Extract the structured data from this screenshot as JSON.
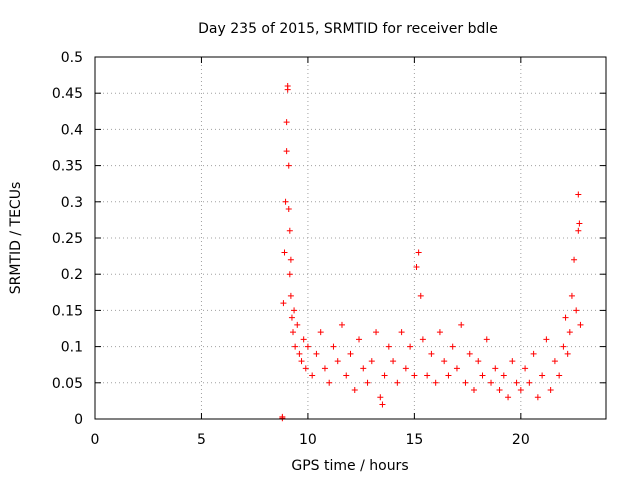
{
  "chart_data": {
    "type": "scatter",
    "title": "Day 235 of 2015, SRMTID for receiver bdle",
    "xlabel": "GPS time / hours",
    "ylabel": "SRMTID / TECUs",
    "xlim": [
      0,
      24
    ],
    "ylim": [
      0,
      0.5
    ],
    "xticks": [
      0,
      5,
      10,
      15,
      20
    ],
    "xtick_labels": [
      "0",
      "5",
      "10",
      "15",
      "20"
    ],
    "yticks": [
      0,
      0.05,
      0.1,
      0.15,
      0.2,
      0.25,
      0.3,
      0.35,
      0.4,
      0.45,
      0.5
    ],
    "ytick_labels": [
      "0",
      "0.05",
      "0.1",
      "0.15",
      "0.2",
      "0.25",
      "0.3",
      "0.35",
      "0.4",
      "0.45",
      "0.5"
    ],
    "grid": true,
    "marker": "+",
    "color": "#ff0000",
    "series": [
      {
        "name": "SRMTID",
        "x": [
          8.8,
          8.8,
          8.85,
          8.9,
          8.95,
          9.0,
          9.0,
          9.05,
          9.05,
          9.1,
          9.1,
          9.15,
          9.15,
          9.2,
          9.2,
          9.25,
          9.3,
          9.35,
          9.4,
          9.5,
          9.6,
          9.7,
          9.8,
          9.9,
          10.0,
          10.2,
          10.4,
          10.6,
          10.8,
          11.0,
          11.2,
          11.4,
          11.6,
          11.8,
          12.0,
          12.2,
          12.4,
          12.6,
          12.8,
          13.0,
          13.2,
          13.4,
          13.5,
          13.6,
          13.8,
          14.0,
          14.2,
          14.4,
          14.6,
          14.8,
          15.0,
          15.1,
          15.2,
          15.3,
          15.4,
          15.6,
          15.8,
          16.0,
          16.2,
          16.4,
          16.6,
          16.8,
          17.0,
          17.2,
          17.4,
          17.6,
          17.8,
          18.0,
          18.2,
          18.4,
          18.6,
          18.8,
          19.0,
          19.2,
          19.4,
          19.6,
          19.8,
          20.0,
          20.2,
          20.4,
          20.6,
          20.8,
          21.0,
          21.2,
          21.4,
          21.6,
          21.8,
          22.0,
          22.1,
          22.2,
          22.3,
          22.4,
          22.5,
          22.6,
          22.7,
          22.7,
          22.75,
          22.8
        ],
        "y": [
          0.001,
          0.003,
          0.16,
          0.23,
          0.3,
          0.37,
          0.41,
          0.46,
          0.455,
          0.35,
          0.29,
          0.26,
          0.2,
          0.22,
          0.17,
          0.14,
          0.12,
          0.15,
          0.1,
          0.13,
          0.09,
          0.08,
          0.11,
          0.07,
          0.1,
          0.06,
          0.09,
          0.12,
          0.07,
          0.05,
          0.1,
          0.08,
          0.13,
          0.06,
          0.09,
          0.04,
          0.11,
          0.07,
          0.05,
          0.08,
          0.12,
          0.03,
          0.02,
          0.06,
          0.1,
          0.08,
          0.05,
          0.12,
          0.07,
          0.1,
          0.06,
          0.21,
          0.23,
          0.17,
          0.11,
          0.06,
          0.09,
          0.05,
          0.12,
          0.08,
          0.06,
          0.1,
          0.07,
          0.13,
          0.05,
          0.09,
          0.04,
          0.08,
          0.06,
          0.11,
          0.05,
          0.07,
          0.04,
          0.06,
          0.03,
          0.08,
          0.05,
          0.04,
          0.07,
          0.05,
          0.09,
          0.03,
          0.06,
          0.11,
          0.04,
          0.08,
          0.06,
          0.1,
          0.14,
          0.09,
          0.12,
          0.17,
          0.22,
          0.15,
          0.26,
          0.31,
          0.27,
          0.13
        ]
      }
    ]
  }
}
